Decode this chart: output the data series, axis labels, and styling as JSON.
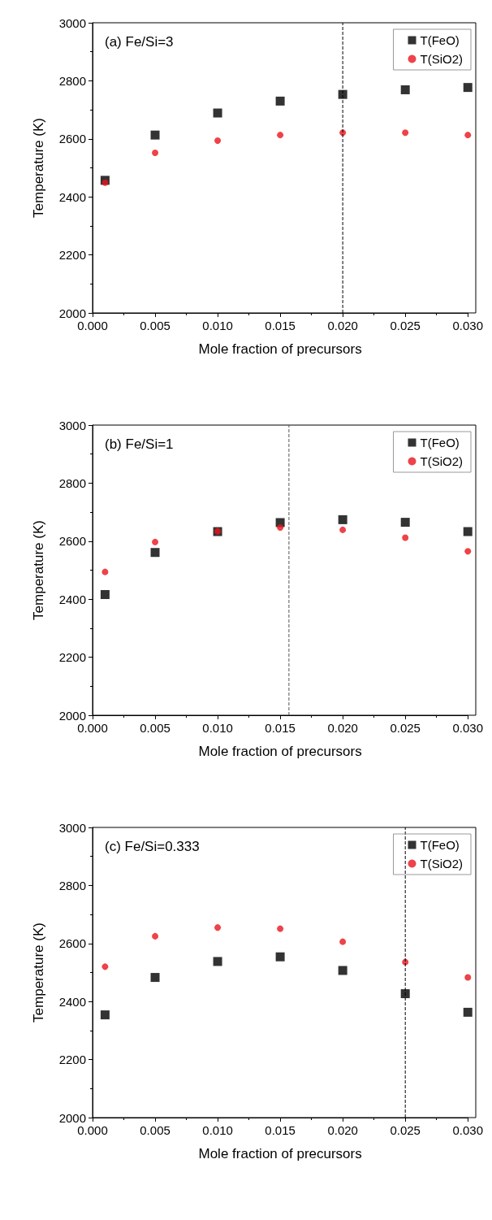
{
  "chart_data": [
    {
      "type": "scatter",
      "title": "(a) Fe/Si=3",
      "xlabel": "Mole fraction of precursors",
      "ylabel": "Temperature (K)",
      "x": [
        0.001,
        0.005,
        0.01,
        0.015,
        0.02,
        0.025,
        0.03
      ],
      "series": [
        {
          "name": "T(FeO)",
          "color": "#000000",
          "marker": "square",
          "values": [
            2457,
            2613,
            2689,
            2730,
            2753,
            2769,
            2777
          ]
        },
        {
          "name": "T(SiO2)",
          "color": "#e8141c",
          "marker": "circle",
          "values": [
            2449,
            2552,
            2594,
            2613,
            2621,
            2621,
            2613
          ]
        }
      ],
      "xlim": [
        0,
        0.03
      ],
      "xticks": [
        {
          "value": 0,
          "label": "0.000"
        },
        {
          "value": 0.005,
          "label": "0.005"
        },
        {
          "value": 0.01,
          "label": "0.010"
        },
        {
          "value": 0.015,
          "label": "0.015"
        },
        {
          "value": 0.02,
          "label": "0.020"
        },
        {
          "value": 0.025,
          "label": "0.025"
        },
        {
          "value": 0.03,
          "label": "0.030"
        }
      ],
      "ylim": [
        2000,
        3000
      ],
      "yticks": [
        2000,
        2200,
        2400,
        2600,
        2800,
        3000
      ],
      "grid": false,
      "legend": "top right",
      "ref_lines": [
        {
          "axis": "x",
          "value": 0.02,
          "color": "#000000",
          "line_style": "dashed"
        }
      ]
    },
    {
      "type": "scatter",
      "title": "(b) Fe/Si=1",
      "xlabel": "Mole fraction of precursors",
      "ylabel": "Temperature (K)",
      "x": [
        0.001,
        0.005,
        0.01,
        0.015,
        0.02,
        0.025,
        0.03
      ],
      "series": [
        {
          "name": "T(FeO)",
          "color": "#000000",
          "marker": "square",
          "values": [
            2416,
            2561,
            2633,
            2664,
            2674,
            2665,
            2633
          ]
        },
        {
          "name": "T(SiO2)",
          "color": "#e8141c",
          "marker": "circle",
          "values": [
            2494,
            2597,
            2634,
            2647,
            2639,
            2612,
            2565
          ]
        }
      ],
      "xlim": [
        0,
        0.03
      ],
      "xticks": [
        {
          "value": 0,
          "label": "0.000"
        },
        {
          "value": 0.005,
          "label": "0.005"
        },
        {
          "value": 0.01,
          "label": "0.010"
        },
        {
          "value": 0.015,
          "label": "0.015"
        },
        {
          "value": 0.02,
          "label": "0.020"
        },
        {
          "value": 0.025,
          "label": "0.025"
        },
        {
          "value": 0.03,
          "label": "0.030"
        }
      ],
      "ylim": [
        2000,
        3000
      ],
      "yticks": [
        2000,
        2200,
        2400,
        2600,
        2800,
        3000
      ],
      "grid": false,
      "legend": "top right",
      "ref_lines": [
        {
          "axis": "x",
          "value": 0.0157,
          "color": "#555555",
          "line_style": "dashed"
        }
      ]
    },
    {
      "type": "scatter",
      "title": "(c) Fe/Si=0.333",
      "xlabel": "Mole fraction of precursors",
      "ylabel": "Temperature (K)",
      "x": [
        0.001,
        0.005,
        0.01,
        0.015,
        0.02,
        0.025,
        0.03
      ],
      "series": [
        {
          "name": "T(FeO)",
          "color": "#000000",
          "marker": "square",
          "values": [
            2354,
            2483,
            2538,
            2554,
            2507,
            2427,
            2363
          ]
        },
        {
          "name": "T(SiO2)",
          "color": "#e8141c",
          "marker": "circle",
          "values": [
            2520,
            2625,
            2655,
            2651,
            2606,
            2536,
            2483
          ]
        }
      ],
      "xlim": [
        0,
        0.03
      ],
      "xticks": [
        {
          "value": 0,
          "label": "0.000"
        },
        {
          "value": 0.005,
          "label": "0.005"
        },
        {
          "value": 0.01,
          "label": "0.010"
        },
        {
          "value": 0.015,
          "label": "0.015"
        },
        {
          "value": 0.02,
          "label": "0.020"
        },
        {
          "value": 0.025,
          "label": "0.025"
        },
        {
          "value": 0.03,
          "label": "0.030"
        }
      ],
      "ylim": [
        2000,
        3000
      ],
      "yticks": [
        2000,
        2200,
        2400,
        2600,
        2800,
        3000
      ],
      "grid": false,
      "legend": "top right",
      "ref_lines": [
        {
          "axis": "x",
          "value": 0.025,
          "color": "#000000",
          "line_style": "dashed"
        }
      ]
    }
  ]
}
